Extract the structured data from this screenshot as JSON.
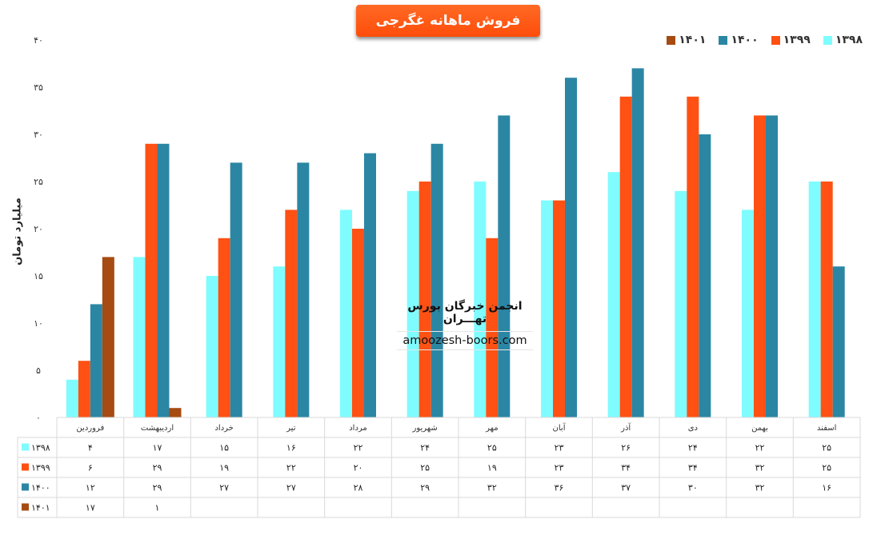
{
  "title": "فروش ماهانه غگرجی",
  "watermark": {
    "line1": "انجمن خبرگان بورس تهـــران",
    "line2": "amoozesh-boors.com"
  },
  "chart_data": {
    "type": "bar",
    "ylabel": "میلیارد تومان",
    "ylim": [
      0,
      40
    ],
    "yticks": [
      0,
      5,
      10,
      15,
      20,
      25,
      30,
      35,
      40
    ],
    "ytick_labels": [
      "۰",
      "۵",
      "۱۰",
      "۱۵",
      "۲۰",
      "۲۵",
      "۳۰",
      "۳۵",
      "۴۰"
    ],
    "categories": [
      "فروردین",
      "اردیبهشت",
      "خرداد",
      "تیر",
      "مرداد",
      "شهریور",
      "مهر",
      "آبان",
      "آذر",
      "دی",
      "بهمن",
      "اسفند"
    ],
    "series": [
      {
        "name": "۱۳۹۸",
        "color": "#7ffcff",
        "values": [
          4,
          17,
          15,
          16,
          22,
          24,
          25,
          23,
          26,
          24,
          22,
          25
        ],
        "labels": [
          "۴",
          "۱۷",
          "۱۵",
          "۱۶",
          "۲۲",
          "۲۴",
          "۲۵",
          "۲۳",
          "۲۶",
          "۲۴",
          "۲۲",
          "۲۵"
        ]
      },
      {
        "name": "۱۳۹۹",
        "color": "#ff5113",
        "values": [
          6,
          29,
          19,
          22,
          20,
          25,
          19,
          23,
          34,
          34,
          32,
          25
        ],
        "labels": [
          "۶",
          "۲۹",
          "۱۹",
          "۲۲",
          "۲۰",
          "۲۵",
          "۱۹",
          "۲۳",
          "۳۴",
          "۳۴",
          "۳۲",
          "۲۵"
        ]
      },
      {
        "name": "۱۴۰۰",
        "color": "#2b86a4",
        "values": [
          12,
          29,
          27,
          27,
          28,
          29,
          32,
          36,
          37,
          30,
          32,
          16
        ],
        "labels": [
          "۱۲",
          "۲۹",
          "۲۷",
          "۲۷",
          "۲۸",
          "۲۹",
          "۳۲",
          "۳۶",
          "۳۷",
          "۳۰",
          "۳۲",
          "۱۶"
        ]
      },
      {
        "name": "۱۴۰۱",
        "color": "#a64b12",
        "values": [
          17,
          1,
          null,
          null,
          null,
          null,
          null,
          null,
          null,
          null,
          null,
          null
        ],
        "labels": [
          "۱۷",
          "۱",
          "",
          "",
          "",
          "",
          "",
          "",
          "",
          "",
          "",
          ""
        ]
      }
    ],
    "legend_position": "top-right",
    "grid": false
  }
}
